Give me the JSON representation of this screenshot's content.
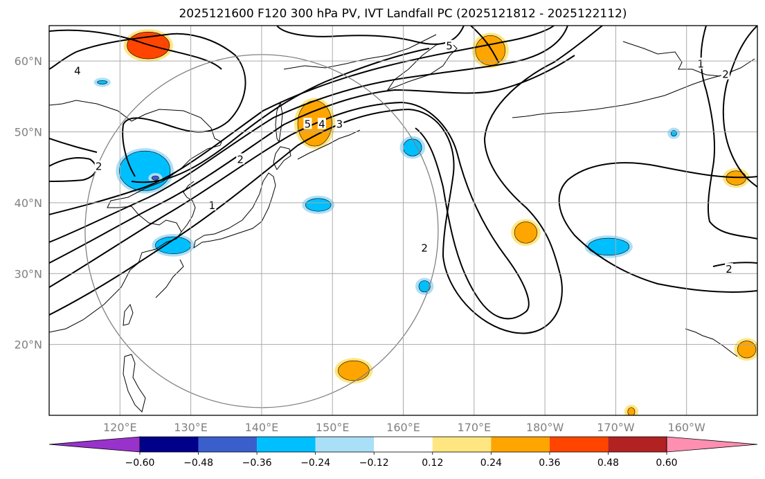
{
  "title": "2025121600 F120 300 hPa PV, IVT Landfall PC (2025121812 - 2025122112)",
  "map": {
    "projection": "PlateCarree",
    "lon_range": [
      110,
      210
    ],
    "lat_range": [
      10,
      65
    ],
    "gridlines": true,
    "lon_ticks": [
      {
        "lon": 120,
        "label": "120°E"
      },
      {
        "lon": 130,
        "label": "130°E"
      },
      {
        "lon": 140,
        "label": "140°E"
      },
      {
        "lon": 150,
        "label": "150°E"
      },
      {
        "lon": 160,
        "label": "160°E"
      },
      {
        "lon": 170,
        "label": "170°E"
      },
      {
        "lon": 180,
        "label": "180°W"
      },
      {
        "lon": 190,
        "label": "170°W"
      },
      {
        "lon": 200,
        "label": "160°W"
      }
    ],
    "lat_ticks": [
      {
        "lat": 20,
        "label": "20°N"
      },
      {
        "lat": 30,
        "label": "30°N"
      },
      {
        "lat": 40,
        "label": "40°N"
      },
      {
        "lat": 50,
        "label": "50°N"
      },
      {
        "lat": 60,
        "label": "60°N"
      }
    ],
    "tick_color": "#808080",
    "grid_color": "#aaaaaa"
  },
  "colorbar": {
    "bounds": [
      "-0.60",
      "-0.48",
      "-0.36",
      "-0.24",
      "-0.12",
      "0.12",
      "0.24",
      "0.36",
      "0.48",
      "0.60"
    ],
    "colors": [
      "#9932cc",
      "#00008b",
      "#3a5fcd",
      "#00bfff",
      "#aadff8",
      "#ffffff",
      "#ffe680",
      "#ffa500",
      "#ff4500",
      "#b22222",
      "#ff8fb0"
    ],
    "extend": "both"
  },
  "pv_contour_labels": [
    {
      "text": "4",
      "lon": 114,
      "lat": 58.5
    },
    {
      "text": "5",
      "lon": 146.5,
      "lat": 51
    },
    {
      "text": "4",
      "lon": 148.5,
      "lat": 51
    },
    {
      "text": "3",
      "lon": 151,
      "lat": 51
    },
    {
      "text": "2",
      "lon": 137,
      "lat": 46
    },
    {
      "text": "2",
      "lon": 117,
      "lat": 45
    },
    {
      "text": "1",
      "lon": 133,
      "lat": 39.5
    },
    {
      "text": "2",
      "lon": 163,
      "lat": 33.5
    },
    {
      "text": "5",
      "lon": 166.5,
      "lat": 62
    },
    {
      "text": "2",
      "lon": 206,
      "lat": 30.5
    },
    {
      "text": "1",
      "lon": 202,
      "lat": 59.5
    },
    {
      "text": "2",
      "lon": 205.5,
      "lat": 58
    }
  ],
  "ivt_pc_anomalies": [
    {
      "lon": 123.5,
      "lat": 44.5,
      "rx": 3.6,
      "ry": 2.8,
      "value": -0.3
    },
    {
      "lon": 125,
      "lat": 43.5,
      "rx": 0.5,
      "ry": 0.3,
      "value": -0.42
    },
    {
      "lon": 127.5,
      "lat": 34,
      "rx": 2.5,
      "ry": 1.2,
      "value": -0.3
    },
    {
      "lon": 148,
      "lat": 39.7,
      "rx": 1.8,
      "ry": 0.9,
      "value": -0.3
    },
    {
      "lon": 161.3,
      "lat": 47.8,
      "rx": 1.3,
      "ry": 1.2,
      "value": -0.3
    },
    {
      "lon": 163,
      "lat": 28.2,
      "rx": 0.8,
      "ry": 0.8,
      "value": -0.3
    },
    {
      "lon": 189,
      "lat": 33.8,
      "rx": 2.9,
      "ry": 1.2,
      "value": -0.3
    },
    {
      "lon": 117.5,
      "lat": 57,
      "rx": 0.7,
      "ry": 0.25,
      "value": -0.3
    },
    {
      "lon": 198.2,
      "lat": 49.8,
      "rx": 0.4,
      "ry": 0.4,
      "value": -0.3
    },
    {
      "lon": 124,
      "lat": 62.2,
      "rx": 3,
      "ry": 1.9,
      "value": 0.4
    },
    {
      "lon": 147.5,
      "lat": 51.2,
      "rx": 2.4,
      "ry": 3.2,
      "value": 0.3
    },
    {
      "lon": 172.3,
      "lat": 61.5,
      "rx": 2.1,
      "ry": 2.1,
      "value": 0.3
    },
    {
      "lon": 177.3,
      "lat": 35.8,
      "rx": 1.6,
      "ry": 1.5,
      "value": 0.35
    },
    {
      "lon": 153,
      "lat": 16.3,
      "rx": 2.2,
      "ry": 1.4,
      "value": 0.3
    },
    {
      "lon": 207,
      "lat": 43.5,
      "rx": 1.4,
      "ry": 1.0,
      "value": 0.3
    },
    {
      "lon": 208.5,
      "lat": 19.3,
      "rx": 1.3,
      "ry": 1.2,
      "value": 0.3
    },
    {
      "lon": 192.2,
      "lat": 10.5,
      "rx": 0.5,
      "ry": 0.6,
      "value": 0.3
    }
  ],
  "landfall_circle": {
    "lon": 140,
    "lat": 36
  }
}
